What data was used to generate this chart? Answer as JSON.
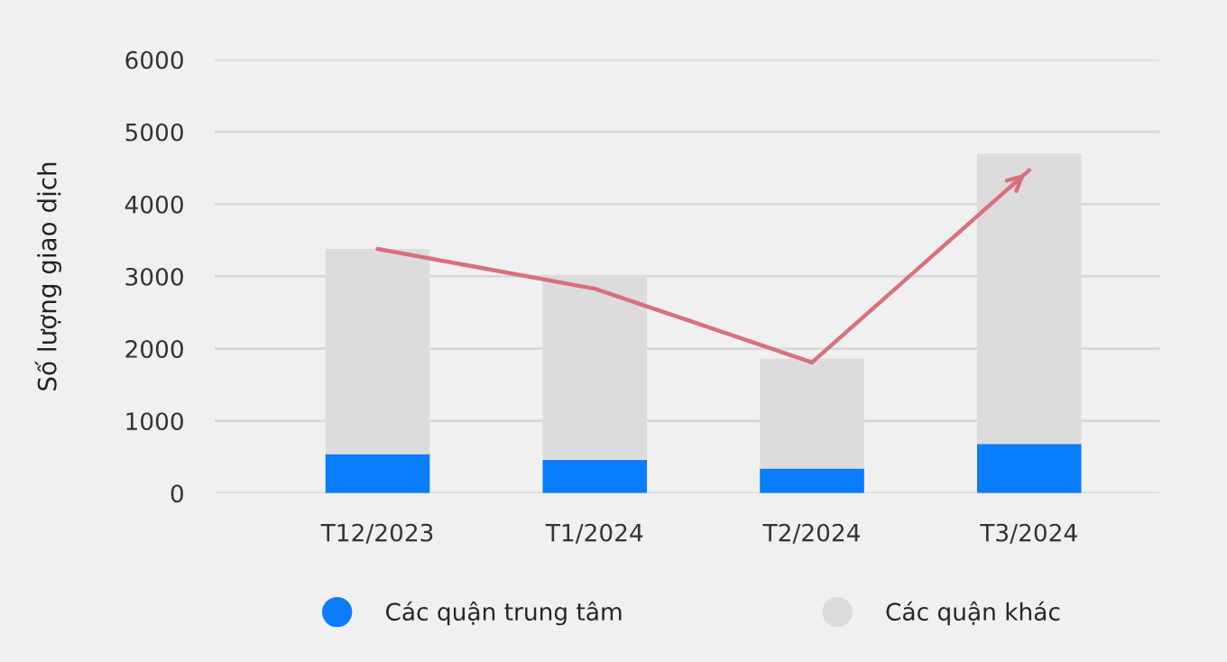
{
  "chart_data": {
    "type": "bar",
    "stacked": true,
    "ylabel": "Số lượng giao dịch",
    "categories": [
      "T12/2023",
      "T1/2024",
      "T2/2024",
      "T3/2024"
    ],
    "series": [
      {
        "name": "Các quận trung tâm",
        "color": "#0a7cff",
        "values": [
          540,
          460,
          340,
          680
        ]
      },
      {
        "name": "Các quận khác",
        "color": "#dcdcdc",
        "values": [
          2840,
          2560,
          1520,
          4020
        ]
      },
      {
        "type": "line",
        "color": "#d9707a",
        "values": [
          3380,
          2830,
          1810,
          4470
        ]
      }
    ],
    "ylim": [
      0,
      6000
    ],
    "yticks": [
      0,
      1000,
      2000,
      3000,
      4000,
      5000,
      6000
    ],
    "grid": "y",
    "legend": "bottom",
    "marker": "none"
  }
}
